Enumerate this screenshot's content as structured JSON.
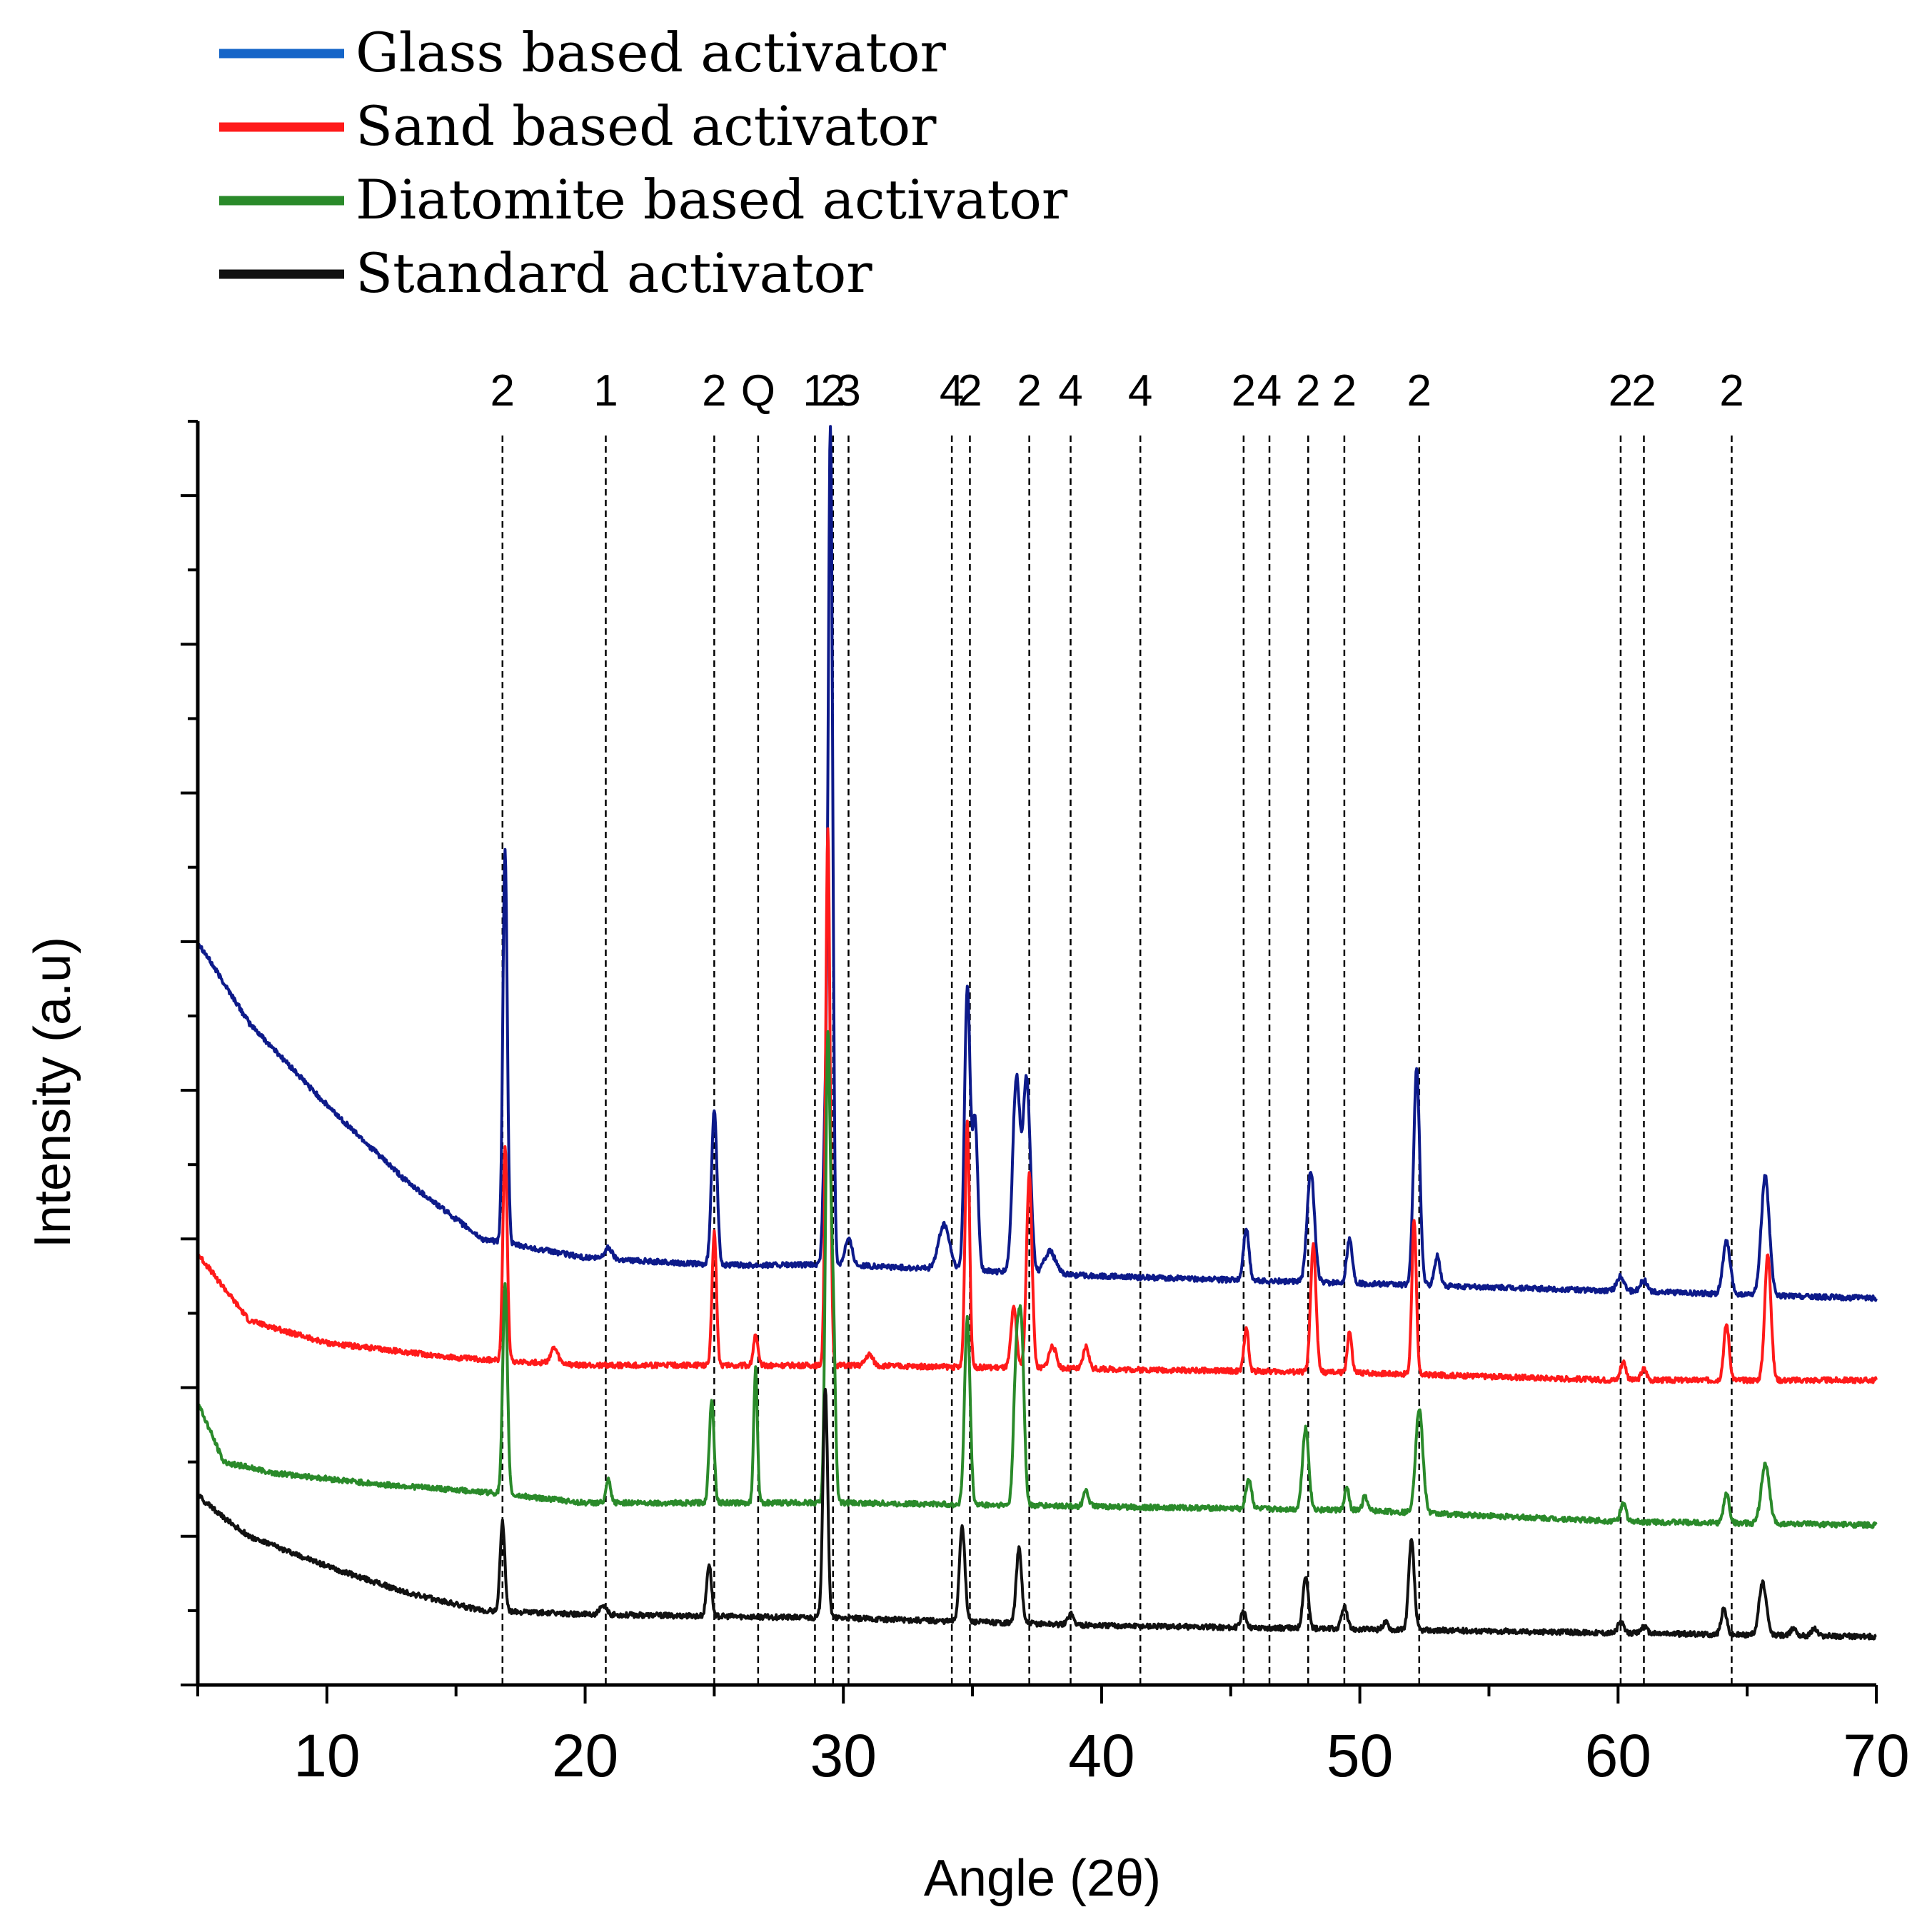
{
  "chart_data": {
    "type": "line",
    "title": "",
    "xlabel": "Angle (2θ)",
    "ylabel": "Intensity (a.u)",
    "xlim": [
      5,
      70
    ],
    "ylim": [
      0,
      17
    ],
    "x_ticks": [
      10,
      20,
      30,
      40,
      50,
      60,
      70
    ],
    "x_minor_step": 5,
    "y_minor_count": 17,
    "legend_position": "top-left",
    "colors": {
      "glass": "#1565c8",
      "glass_line": "#0d1a8a",
      "sand": "#ff1a1a",
      "diatomite": "#2a8a2a",
      "standard": "#111111"
    },
    "series": [
      {
        "name": "Glass based activator",
        "key": "glass",
        "baseline": [
          [
            5,
            10.0
          ],
          [
            7,
            8.9
          ],
          [
            10,
            7.8
          ],
          [
            13,
            6.8
          ],
          [
            16,
            6.0
          ],
          [
            20,
            5.75
          ],
          [
            25,
            5.65
          ],
          [
            30,
            5.65
          ],
          [
            40,
            5.5
          ],
          [
            50,
            5.4
          ],
          [
            60,
            5.3
          ],
          [
            70,
            5.2
          ]
        ],
        "peaks": [
          [
            16.9,
            5.3,
            0.12
          ],
          [
            20.9,
            0.15,
            0.2
          ],
          [
            25.0,
            2.1,
            0.15
          ],
          [
            29.3,
            1.8,
            0.12
          ],
          [
            29.5,
            11.2,
            0.12
          ],
          [
            30.2,
            0.35,
            0.2
          ],
          [
            33.9,
            0.6,
            0.3
          ],
          [
            34.8,
            3.8,
            0.15
          ],
          [
            35.1,
            2.0,
            0.15
          ],
          [
            36.7,
            2.6,
            0.2
          ],
          [
            37.1,
            2.6,
            0.2
          ],
          [
            38.0,
            0.3,
            0.3
          ],
          [
            45.6,
            0.7,
            0.15
          ],
          [
            48.1,
            1.5,
            0.2
          ],
          [
            49.6,
            0.6,
            0.15
          ],
          [
            52.2,
            2.9,
            0.17
          ],
          [
            53.0,
            0.4,
            0.15
          ],
          [
            60.1,
            0.2,
            0.2
          ],
          [
            61.0,
            0.15,
            0.2
          ],
          [
            64.2,
            0.7,
            0.2
          ],
          [
            65.7,
            1.6,
            0.22
          ]
        ]
      },
      {
        "name": "Sand based activator",
        "key": "sand",
        "baseline": [
          [
            5,
            5.8
          ],
          [
            7,
            4.9
          ],
          [
            10,
            4.6
          ],
          [
            15,
            4.4
          ],
          [
            20,
            4.3
          ],
          [
            30,
            4.3
          ],
          [
            40,
            4.25
          ],
          [
            50,
            4.2
          ],
          [
            60,
            4.1
          ],
          [
            70,
            4.1
          ]
        ],
        "peaks": [
          [
            16.9,
            2.9,
            0.12
          ],
          [
            18.8,
            0.2,
            0.2
          ],
          [
            25.0,
            1.8,
            0.12
          ],
          [
            26.6,
            0.4,
            0.12
          ],
          [
            29.4,
            7.2,
            0.12
          ],
          [
            31.0,
            0.15,
            0.2
          ],
          [
            34.8,
            3.3,
            0.12
          ],
          [
            36.6,
            0.8,
            0.15
          ],
          [
            37.2,
            2.6,
            0.15
          ],
          [
            38.1,
            0.3,
            0.2
          ],
          [
            39.4,
            0.3,
            0.15
          ],
          [
            45.6,
            0.6,
            0.12
          ],
          [
            48.2,
            1.7,
            0.15
          ],
          [
            49.6,
            0.55,
            0.12
          ],
          [
            52.1,
            2.1,
            0.12
          ],
          [
            60.2,
            0.25,
            0.15
          ],
          [
            61.0,
            0.15,
            0.15
          ],
          [
            64.2,
            0.75,
            0.15
          ],
          [
            65.8,
            1.7,
            0.17
          ]
        ]
      },
      {
        "name": "Diatomite  based activator",
        "key": "diatomite",
        "baseline": [
          [
            5,
            3.8
          ],
          [
            6,
            3.0
          ],
          [
            8,
            2.85
          ],
          [
            12,
            2.7
          ],
          [
            16,
            2.6
          ],
          [
            20,
            2.45
          ],
          [
            30,
            2.45
          ],
          [
            40,
            2.4
          ],
          [
            50,
            2.35
          ],
          [
            60,
            2.2
          ],
          [
            70,
            2.15
          ]
        ],
        "peaks": [
          [
            16.9,
            2.8,
            0.13
          ],
          [
            20.9,
            0.3,
            0.12
          ],
          [
            24.9,
            1.4,
            0.13
          ],
          [
            26.6,
            1.8,
            0.1
          ],
          [
            29.4,
            6.2,
            0.13
          ],
          [
            29.6,
            2.5,
            0.12
          ],
          [
            34.8,
            2.5,
            0.15
          ],
          [
            36.7,
            1.9,
            0.15
          ],
          [
            36.9,
            2.2,
            0.15
          ],
          [
            39.4,
            0.2,
            0.15
          ],
          [
            45.7,
            0.4,
            0.15
          ],
          [
            47.9,
            1.1,
            0.17
          ],
          [
            49.5,
            0.3,
            0.12
          ],
          [
            50.2,
            0.2,
            0.12
          ],
          [
            52.3,
            1.4,
            0.2
          ],
          [
            60.2,
            0.25,
            0.15
          ],
          [
            64.2,
            0.4,
            0.15
          ],
          [
            65.7,
            0.8,
            0.22
          ]
        ]
      },
      {
        "name": "Standard activator",
        "key": "standard",
        "baseline": [
          [
            5,
            2.55
          ],
          [
            6,
            2.25
          ],
          [
            7,
            2.0
          ],
          [
            10,
            1.6
          ],
          [
            13,
            1.25
          ],
          [
            16,
            1.0
          ],
          [
            20,
            0.95
          ],
          [
            30,
            0.9
          ],
          [
            40,
            0.8
          ],
          [
            50,
            0.75
          ],
          [
            60,
            0.7
          ],
          [
            70,
            0.65
          ]
        ],
        "peaks": [
          [
            16.8,
            1.2,
            0.13
          ],
          [
            20.7,
            0.1,
            0.2
          ],
          [
            24.8,
            0.7,
            0.13
          ],
          [
            29.3,
            3.1,
            0.13
          ],
          [
            34.6,
            1.3,
            0.15
          ],
          [
            36.8,
            1.0,
            0.15
          ],
          [
            38.8,
            0.15,
            0.15
          ],
          [
            45.5,
            0.2,
            0.15
          ],
          [
            47.9,
            0.7,
            0.15
          ],
          [
            49.4,
            0.3,
            0.15
          ],
          [
            51.0,
            0.1,
            0.15
          ],
          [
            52.0,
            1.2,
            0.15
          ],
          [
            60.1,
            0.15,
            0.15
          ],
          [
            61.0,
            0.1,
            0.15
          ],
          [
            64.1,
            0.35,
            0.15
          ],
          [
            65.6,
            0.7,
            0.2
          ],
          [
            66.8,
            0.1,
            0.15
          ],
          [
            67.6,
            0.1,
            0.15
          ]
        ]
      }
    ],
    "reference_lines": [
      {
        "x": 16.8,
        "label": "2"
      },
      {
        "x": 20.8,
        "label": "1"
      },
      {
        "x": 25.0,
        "label": "2"
      },
      {
        "x": 26.7,
        "label": "Q"
      },
      {
        "x": 28.9,
        "label": "1"
      },
      {
        "x": 29.6,
        "label": "2"
      },
      {
        "x": 30.2,
        "label": "3"
      },
      {
        "x": 34.2,
        "label": "4"
      },
      {
        "x": 34.9,
        "label": "2"
      },
      {
        "x": 37.2,
        "label": "2"
      },
      {
        "x": 38.8,
        "label": "4"
      },
      {
        "x": 41.5,
        "label": "4"
      },
      {
        "x": 45.5,
        "label": "2"
      },
      {
        "x": 46.5,
        "label": "4"
      },
      {
        "x": 48.0,
        "label": "2"
      },
      {
        "x": 49.4,
        "label": "2"
      },
      {
        "x": 52.3,
        "label": "2"
      },
      {
        "x": 60.1,
        "label": "2"
      },
      {
        "x": 61.0,
        "label": "2"
      },
      {
        "x": 64.4,
        "label": "2"
      }
    ]
  }
}
